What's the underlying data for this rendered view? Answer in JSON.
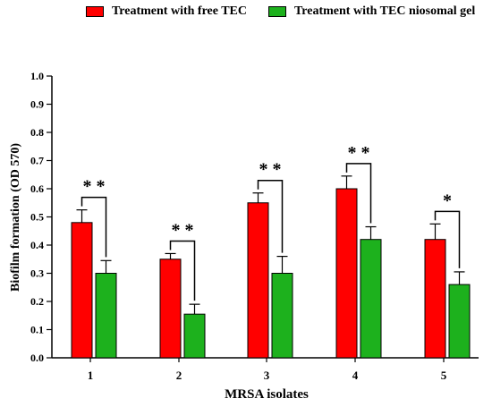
{
  "chart_data": {
    "type": "bar",
    "xlabel": "MRSA isolates",
    "ylabel": "Biofilm formation (OD 570)",
    "ylim": [
      0,
      1.0
    ],
    "yticks": [
      "0.0",
      "0.1",
      "0.2",
      "0.3",
      "0.4",
      "0.5",
      "0.6",
      "0.7",
      "0.8",
      "0.9",
      "1.0"
    ],
    "categories": [
      "1",
      "2",
      "3",
      "4",
      "5"
    ],
    "series": [
      {
        "name": "Treatment with free TEC",
        "color": "#ff0000",
        "values": [
          0.48,
          0.35,
          0.55,
          0.6,
          0.42
        ],
        "errors": [
          0.045,
          0.02,
          0.035,
          0.045,
          0.055
        ]
      },
      {
        "name": "Treatment with TEC niosomal gel",
        "color": "#1db11d",
        "values": [
          0.3,
          0.155,
          0.3,
          0.42,
          0.26
        ],
        "errors": [
          0.045,
          0.035,
          0.06,
          0.045,
          0.045
        ]
      }
    ],
    "significance": [
      "* *",
      "* *",
      "* *",
      "* *",
      "*"
    ],
    "grid": false,
    "legend_position": "top"
  }
}
